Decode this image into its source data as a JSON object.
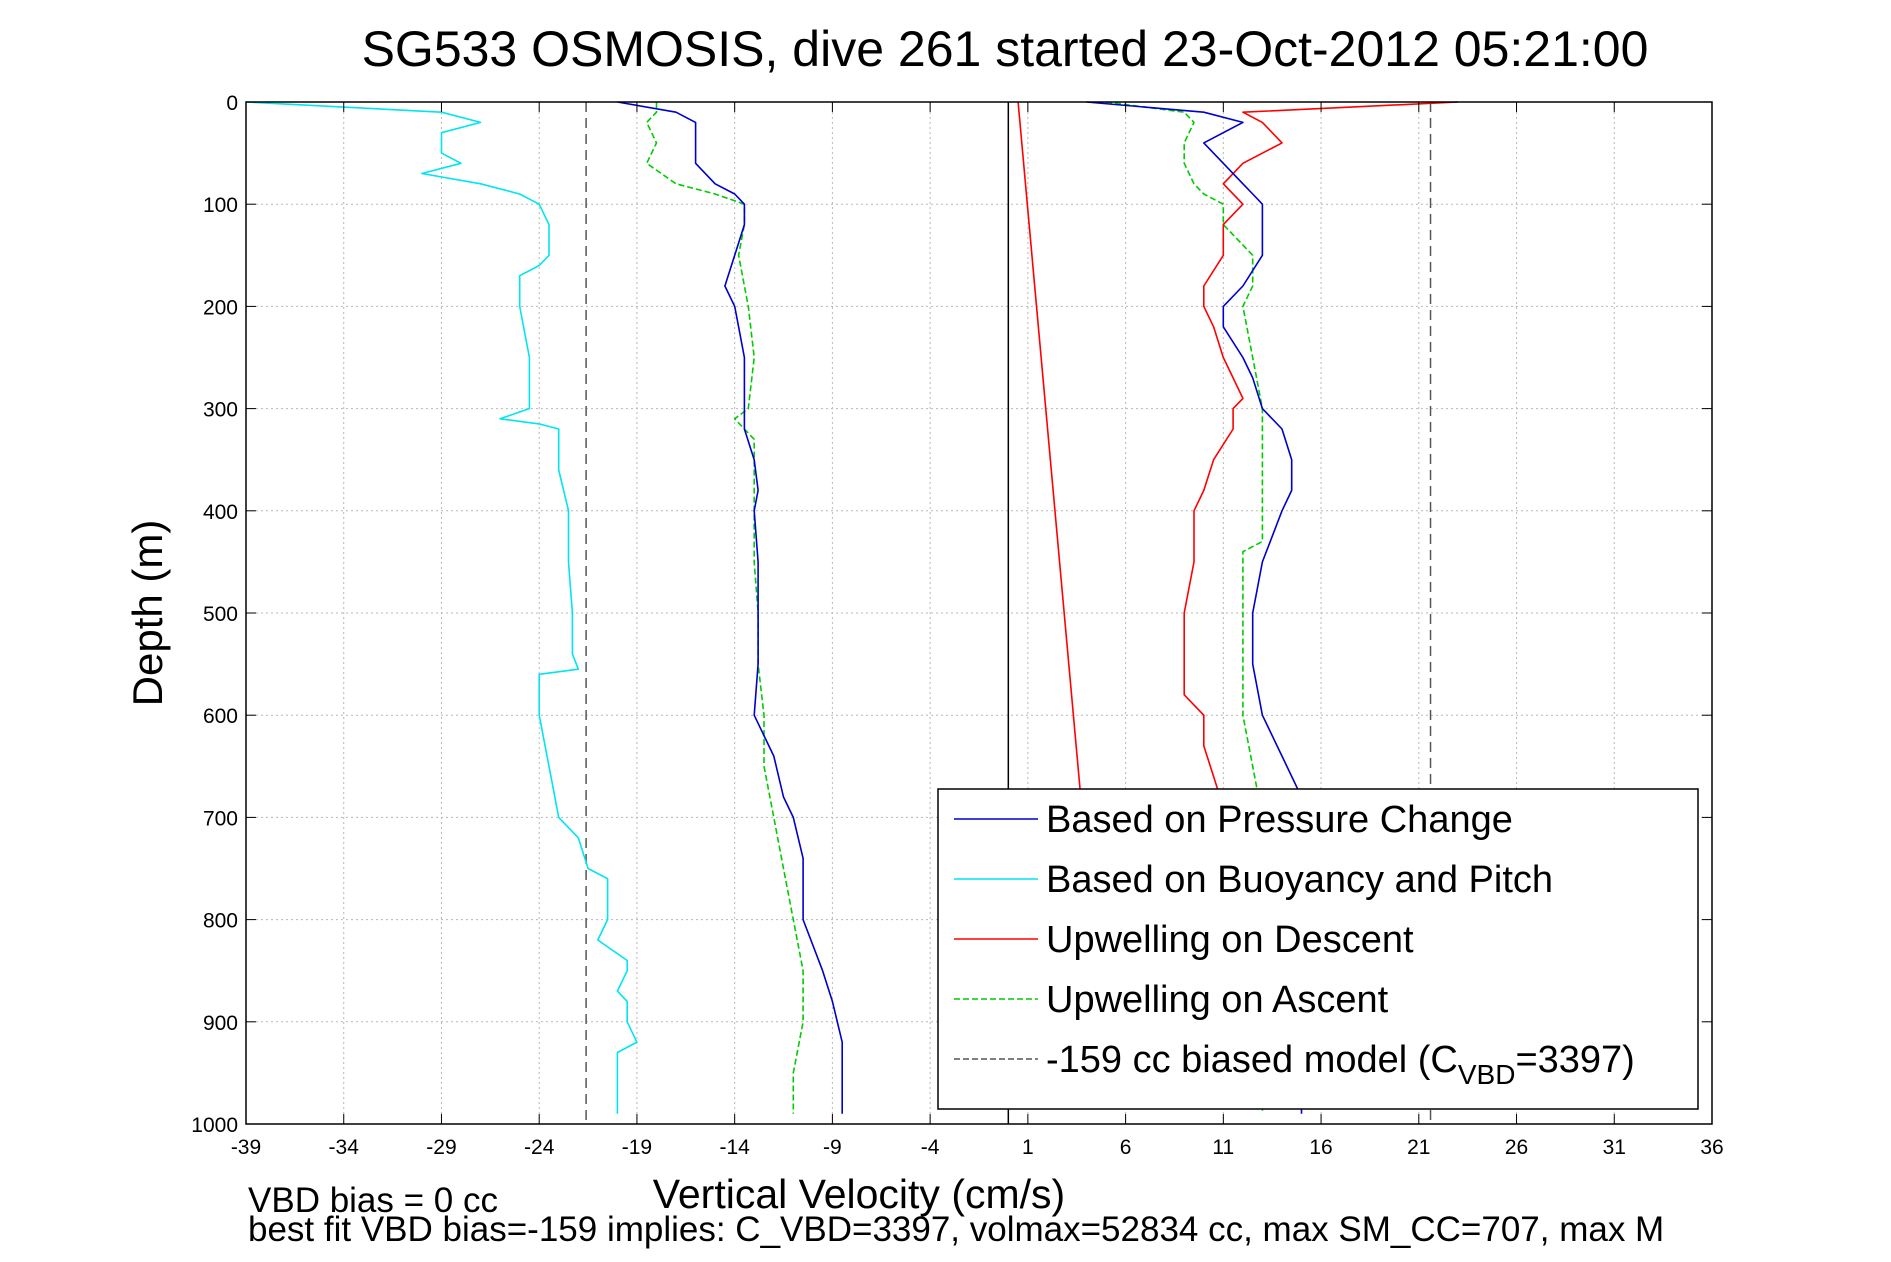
{
  "chart_data": {
    "type": "line",
    "title": "SG533 OSMOSIS, dive 261 started 23-Oct-2012 05:21:00",
    "xlabel": "Vertical Velocity (cm/s)",
    "ylabel": "Depth (m)",
    "xlim": [
      -39,
      36
    ],
    "ylim": [
      0,
      1000
    ],
    "y_reversed": true,
    "grid": true,
    "xticks": [
      -39,
      -34,
      -29,
      -24,
      -19,
      -14,
      -9,
      -4,
      1,
      6,
      11,
      16,
      21,
      26,
      31,
      36
    ],
    "yticks": [
      0,
      100,
      200,
      300,
      400,
      500,
      600,
      700,
      800,
      900,
      1000
    ],
    "legend_position": "bottom-right",
    "reference_lines": [
      {
        "name": "zero",
        "x": 0,
        "color": "#000000",
        "style": "solid"
      },
      {
        "name": "model-left",
        "x": -21.6,
        "color": "#555555",
        "style": "dashed"
      },
      {
        "name": "model-right",
        "x": 21.6,
        "color": "#555555",
        "style": "dashed"
      }
    ],
    "series": [
      {
        "name": "Based on Pressure Change",
        "color": "#0000cc",
        "style": "solid",
        "depth": [
          0,
          10,
          20,
          40,
          60,
          80,
          90,
          100,
          120,
          150,
          180,
          200,
          220,
          250,
          270,
          300,
          320,
          350,
          380,
          400,
          450,
          500,
          550,
          600,
          640,
          680,
          700,
          740,
          780,
          800,
          850,
          880,
          920,
          950,
          980,
          990
        ],
        "values": [
          -20,
          -17,
          -16,
          -16,
          -16,
          -15,
          -14,
          -13.5,
          -13.5,
          -14,
          -14.5,
          -14,
          -13.8,
          -13.5,
          -13.5,
          -13.5,
          -13.5,
          -13,
          -12.8,
          -13,
          -12.8,
          -12.8,
          -12.8,
          -13,
          -12,
          -11.5,
          -11,
          -10.5,
          -10.5,
          -10.5,
          -9.5,
          -9,
          -8.5,
          -8.5,
          -8.5,
          -8.5
        ],
        "values_ascent": [
          4,
          10,
          12,
          10,
          11,
          12,
          12.5,
          13,
          13,
          13,
          12,
          11,
          11,
          12,
          12.5,
          13,
          14,
          14.5,
          14.5,
          14,
          13,
          12.5,
          12.5,
          13,
          14,
          15,
          15,
          15,
          15,
          15,
          15,
          15,
          15,
          15,
          15,
          15
        ]
      },
      {
        "name": "Based on Buoyancy and Pitch",
        "color": "#00e5ee",
        "style": "solid",
        "depth": [
          0,
          10,
          20,
          30,
          40,
          50,
          60,
          70,
          80,
          90,
          95,
          100,
          120,
          150,
          160,
          170,
          200,
          250,
          300,
          310,
          315,
          320,
          330,
          360,
          400,
          450,
          500,
          540,
          555,
          560,
          600,
          650,
          700,
          720,
          750,
          760,
          800,
          820,
          840,
          850,
          870,
          880,
          900,
          920,
          930,
          960,
          980,
          990
        ],
        "values": [
          -39,
          -29,
          -27,
          -29,
          -29,
          -29,
          -28,
          -30,
          -27,
          -25,
          -24.5,
          -24,
          -23.5,
          -23.5,
          -24,
          -25,
          -25,
          -24.5,
          -24.5,
          -26,
          -24,
          -23,
          -23,
          -23,
          -22.5,
          -22.5,
          -22.3,
          -22.3,
          -22,
          -24,
          -24,
          -23.5,
          -23,
          -22,
          -21.5,
          -20.5,
          -20.5,
          -21,
          -19.5,
          -19.5,
          -20,
          -19.5,
          -19.5,
          -19,
          -20,
          -20,
          -20,
          -20
        ]
      },
      {
        "name": "Upwelling on Descent",
        "color": "#ff0000",
        "style": "solid",
        "depth": [
          0,
          10,
          20,
          40,
          60,
          80,
          100,
          120,
          150,
          180,
          200,
          220,
          250,
          270,
          290,
          300,
          320,
          350,
          380,
          400,
          450,
          500,
          550,
          580,
          600,
          630,
          660,
          690
        ],
        "values": [
          23,
          12,
          13,
          14,
          12,
          11,
          12,
          11,
          11,
          10,
          10,
          10.5,
          11,
          11.5,
          12,
          11.5,
          11.5,
          10.5,
          10,
          9.5,
          9.5,
          9,
          9,
          9,
          10,
          10,
          10.5,
          11
        ],
        "model_line": {
          "depth": [
            0,
            700
          ],
          "values": [
            0.5,
            3.8
          ]
        }
      },
      {
        "name": "Upwelling on Ascent",
        "color": "#00cc00",
        "style": "dashed",
        "depth": [
          0,
          10,
          20,
          40,
          60,
          80,
          90,
          100,
          120,
          150,
          180,
          200,
          250,
          300,
          310,
          320,
          330,
          360,
          400,
          430,
          440,
          450,
          500,
          550,
          600,
          650,
          700,
          750,
          800,
          850,
          900,
          950,
          990
        ],
        "values": [
          -18,
          -18,
          -18.5,
          -18,
          -18.5,
          -17,
          -15,
          -13.5,
          -13.5,
          -13.8,
          -13.5,
          -13.3,
          -13,
          -13.3,
          -14,
          -13.5,
          -13,
          -13,
          -13,
          -13,
          -13,
          -13,
          -12.8,
          -12.8,
          -12.5,
          -12.5,
          -12,
          -11.5,
          -11,
          -10.5,
          -10.5,
          -11,
          -11
        ],
        "values_ascent": [
          5,
          9,
          9.5,
          9,
          9,
          9.5,
          10,
          11,
          11,
          12.5,
          12.5,
          12,
          12.5,
          13,
          13,
          13,
          13,
          13,
          13,
          13,
          12,
          12,
          12,
          12,
          12,
          12.5,
          13,
          13,
          13,
          13,
          13,
          13,
          13
        ]
      }
    ],
    "legend": [
      {
        "label": "Based on Pressure Change",
        "color": "#0000cc",
        "style": "solid"
      },
      {
        "label": "Based on Buoyancy and Pitch",
        "color": "#00e5ee",
        "style": "solid"
      },
      {
        "label": "Upwelling on Descent",
        "color": "#ff0000",
        "style": "solid"
      },
      {
        "label": "Upwelling on Ascent",
        "color": "#00cc00",
        "style": "dashed"
      },
      {
        "label_prefix": "-159 cc biased model (C",
        "label_sub": "VBD",
        "label_suffix": "=3397)",
        "color": "#555555",
        "style": "dashed"
      }
    ],
    "annotations": [
      "VBD bias = 0 cc",
      "best fit VBD bias=-159 implies: C_VBD=3397, volmax=52834 cc, max SM_CC=707, max M"
    ]
  }
}
